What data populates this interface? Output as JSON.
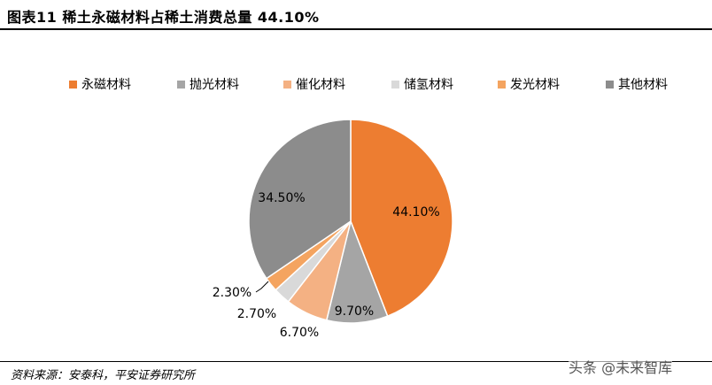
{
  "header": {
    "title": "图表11    稀土永磁材料占稀土消费总量 44.10%"
  },
  "chart_data": {
    "type": "pie",
    "categories": [
      "永磁材料",
      "抛光材料",
      "催化材料",
      "储氢材料",
      "发光材料",
      "其他材料"
    ],
    "values": [
      44.1,
      9.7,
      6.7,
      2.7,
      2.3,
      34.5
    ],
    "value_labels": [
      "44.10%",
      "9.70%",
      "6.70%",
      "2.70%",
      "2.30%",
      "34.50%"
    ],
    "colors": [
      "#ED7D31",
      "#A5A5A5",
      "#F4B183",
      "#D9D9D9",
      "#F4A460",
      "#8C8C8C"
    ],
    "legend_position": "top",
    "start": "12 o'clock, clockwise"
  },
  "footer": {
    "source": "资料来源：安泰科，平安证券研究所"
  },
  "watermark": {
    "text": "头条 @未来智库"
  }
}
